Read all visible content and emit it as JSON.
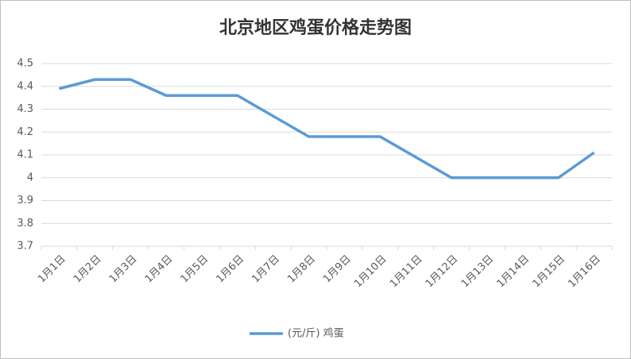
{
  "chart_data": {
    "type": "line",
    "title": "北京地区鸡蛋价格走势图",
    "categories": [
      "1月1日",
      "1月2日",
      "1月3日",
      "1月4日",
      "1月5日",
      "1月6日",
      "1月7日",
      "1月8日",
      "1月9日",
      "1月10日",
      "1月11日",
      "1月12日",
      "1月13日",
      "1月14日",
      "1月15日",
      "1月16日"
    ],
    "series": [
      {
        "name": "(元/斤) 鸡蛋",
        "color": "#5b9bd5",
        "values": [
          4.39,
          4.43,
          4.43,
          4.36,
          4.36,
          4.36,
          4.27,
          4.18,
          4.18,
          4.18,
          4.09,
          4.0,
          4.0,
          4.0,
          4.0,
          4.11
        ]
      }
    ],
    "ylim": [
      3.7,
      4.5
    ],
    "yticks": [
      3.7,
      3.8,
      3.9,
      4,
      4.1,
      4.2,
      4.3,
      4.4,
      4.5
    ],
    "grid": true,
    "legend": "bottom"
  }
}
